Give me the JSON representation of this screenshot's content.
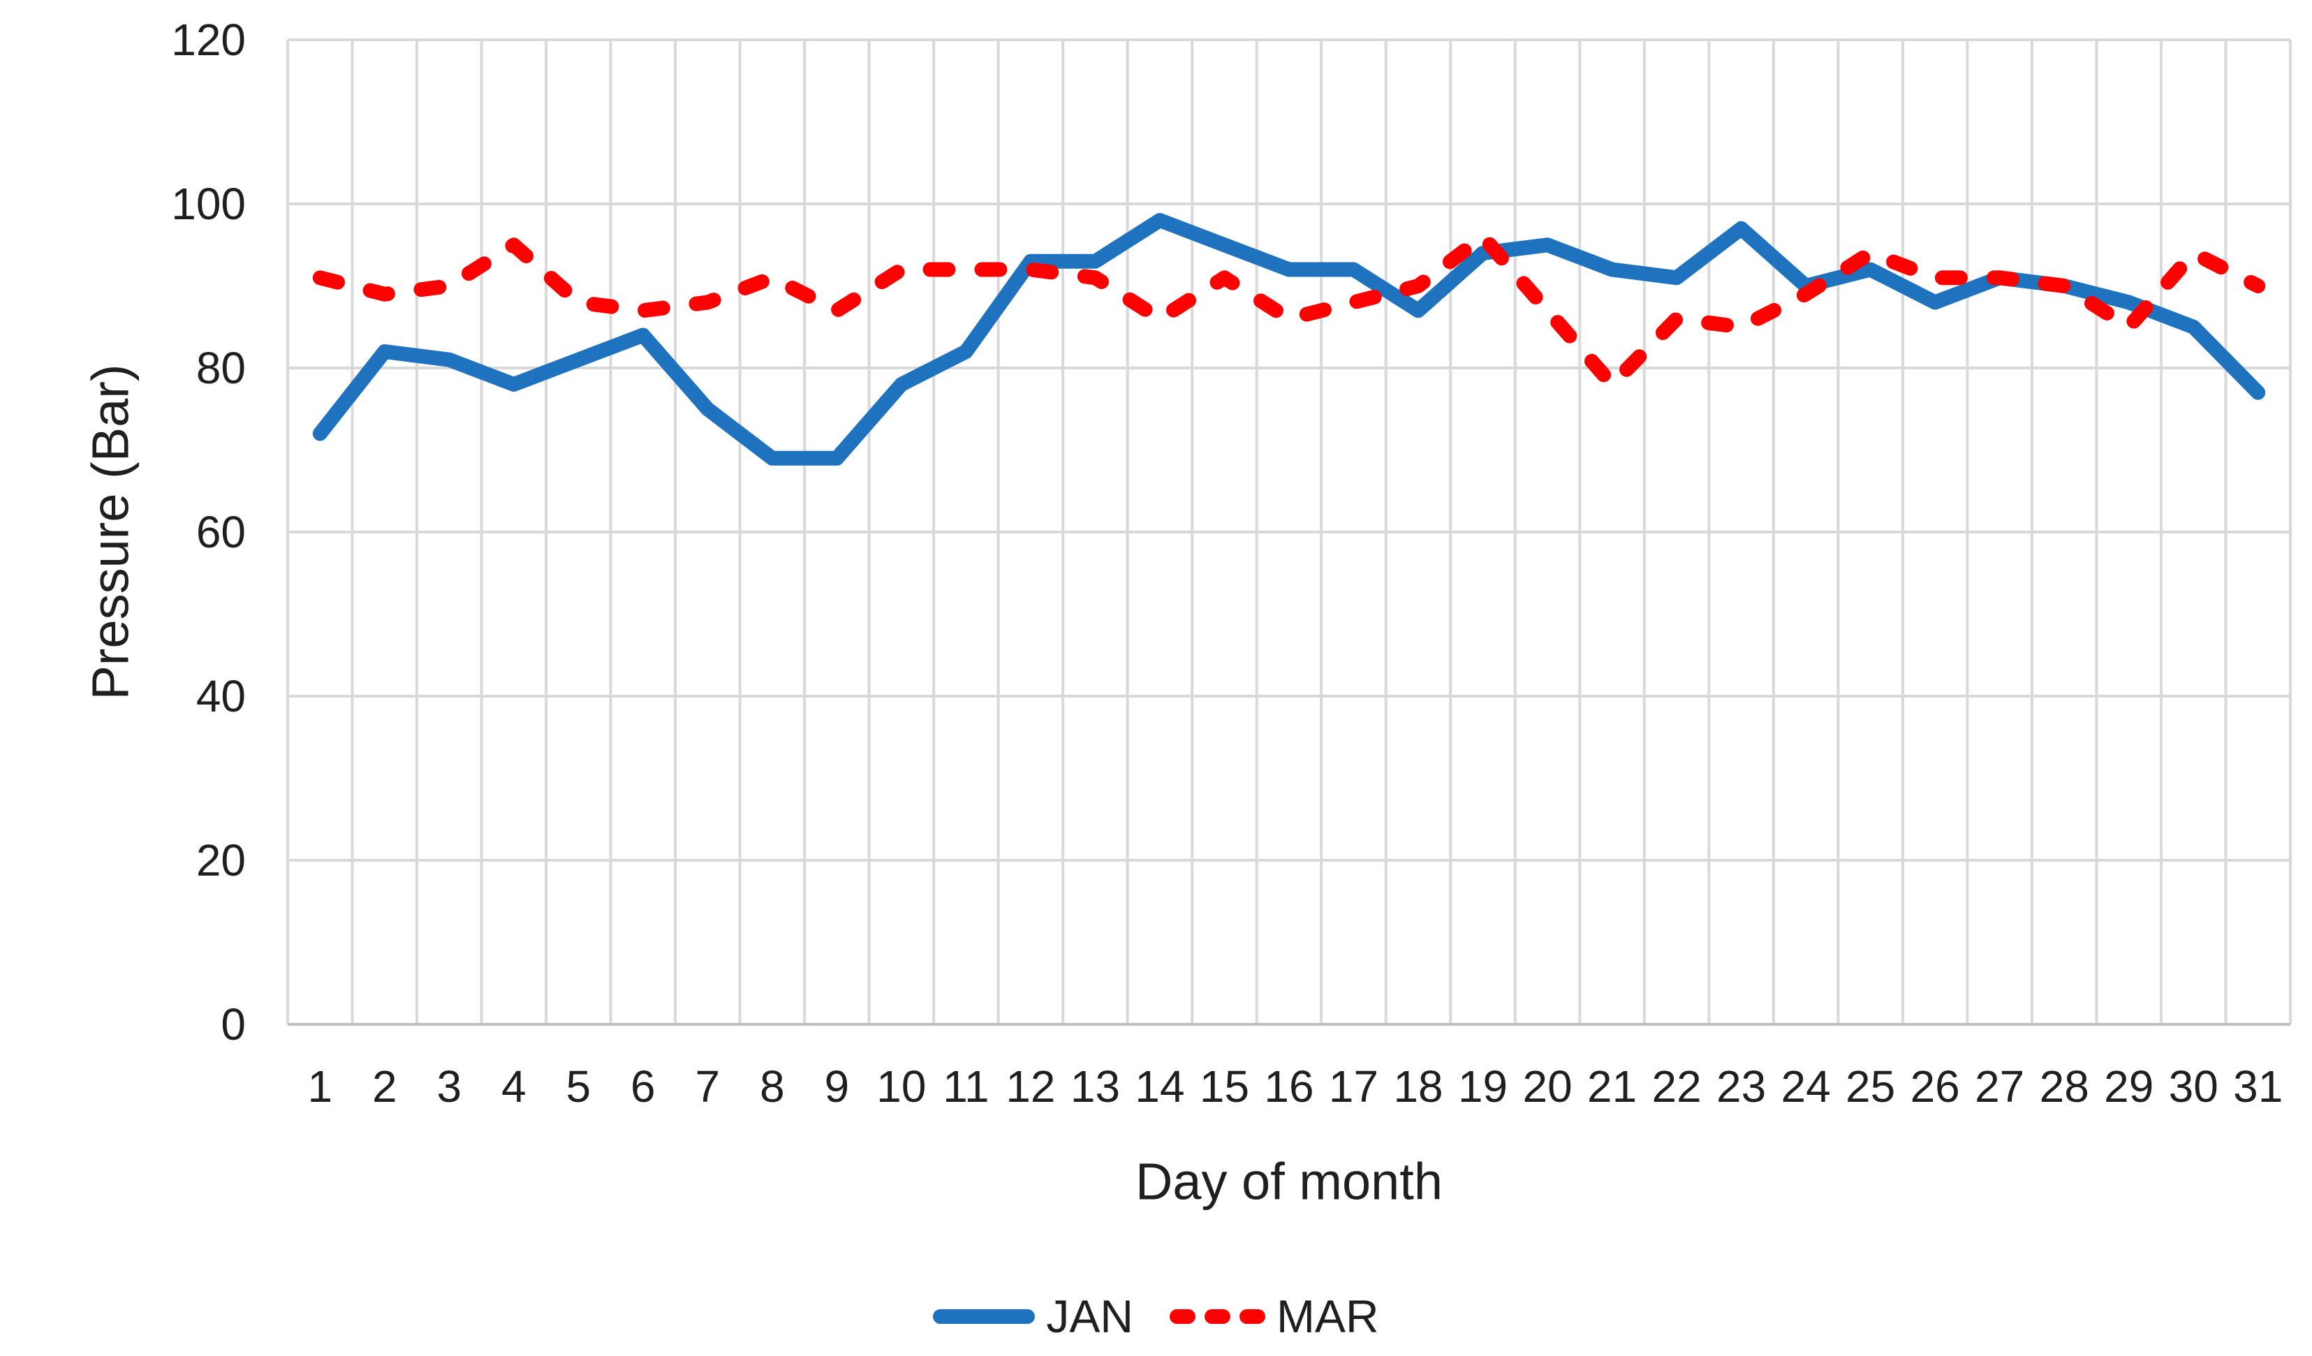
{
  "chart_data": {
    "type": "line",
    "title": "",
    "xlabel": "Day of month",
    "ylabel": "Pressure (Bar)",
    "x": [
      1,
      2,
      3,
      4,
      5,
      6,
      7,
      8,
      9,
      10,
      11,
      12,
      13,
      14,
      15,
      16,
      17,
      18,
      19,
      20,
      21,
      22,
      23,
      24,
      25,
      26,
      27,
      28,
      29,
      30,
      31
    ],
    "series": [
      {
        "name": "JAN",
        "style": "solid",
        "color": "#1F72BE",
        "values": [
          72,
          82,
          81,
          78,
          81,
          84,
          75,
          69,
          69,
          78,
          82,
          93,
          93,
          98,
          95,
          92,
          92,
          87,
          94,
          95,
          92,
          91,
          97,
          90,
          92,
          88,
          91,
          90,
          88,
          85,
          77
        ]
      },
      {
        "name": "MAR",
        "style": "dashed",
        "color": "#FF0000",
        "values": [
          91,
          89,
          90,
          95,
          88,
          87,
          88,
          91,
          87,
          92,
          92,
          92,
          91,
          86,
          91,
          86,
          88,
          90,
          96,
          87,
          78,
          86,
          85,
          89,
          94,
          91,
          91,
          90,
          85,
          94,
          90
        ]
      }
    ],
    "ylim": [
      0,
      120
    ],
    "yticks": [
      0,
      20,
      40,
      60,
      80,
      100,
      120
    ],
    "grid": true,
    "legend_position": "bottom"
  },
  "colors": {
    "background": "#FFFFFF",
    "gridline": "#D9D9D9",
    "axis_line": "#BFBFBF",
    "text": "#1F1F1F",
    "series_jan": "#1F72BE",
    "series_mar": "#FF0000"
  }
}
